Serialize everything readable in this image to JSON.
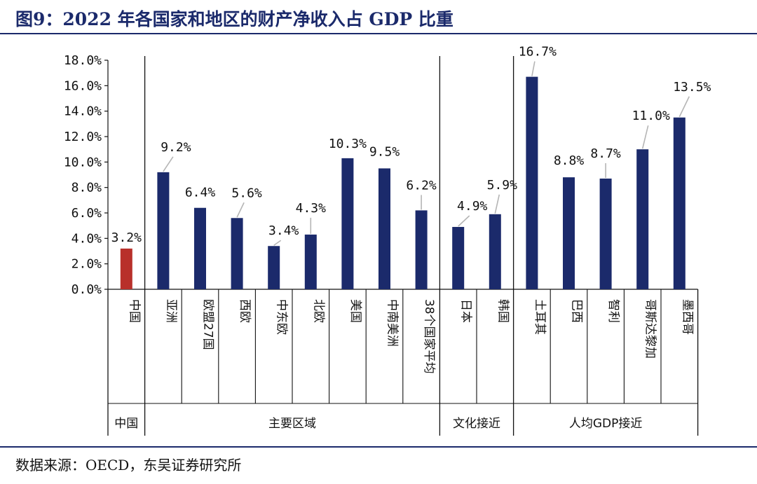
{
  "title": "图9：2022 年各国家和地区的财产净收入占 GDP 比重",
  "source": "数据来源：OECD，东吴证券研究所",
  "colors": {
    "highlight": "#b8302a",
    "bar": "#1b2a6b",
    "rule": "#1b2a6b"
  },
  "chart_data": {
    "type": "bar",
    "ylim": [
      0,
      18
    ],
    "yticks": [
      "0.0%",
      "2.0%",
      "4.0%",
      "6.0%",
      "8.0%",
      "10.0%",
      "12.0%",
      "14.0%",
      "16.0%",
      "18.0%"
    ],
    "grid": false,
    "categories": [
      "中国",
      "亚洲",
      "欧盟27国",
      "西欧",
      "中东欧",
      "北欧",
      "美国",
      "中南美洲",
      "38个国家平均",
      "日本",
      "韩国",
      "土耳其",
      "巴西",
      "智利",
      "哥斯达黎加",
      "墨西哥"
    ],
    "values": [
      3.2,
      9.2,
      6.4,
      5.6,
      3.4,
      4.3,
      10.3,
      9.5,
      6.2,
      4.9,
      5.9,
      16.7,
      8.8,
      8.7,
      11.0,
      13.5
    ],
    "labels": [
      "3.2%",
      "9.2%",
      "6.4%",
      "5.6%",
      "3.4%",
      "4.3%",
      "10.3%",
      "9.5%",
      "6.2%",
      "4.9%",
      "5.9%",
      "16.7%",
      "8.8%",
      "8.7%",
      "11.0%",
      "13.5%"
    ],
    "groups": [
      {
        "name": "中国",
        "start": 0,
        "end": 0
      },
      {
        "name": "主要区域",
        "start": 1,
        "end": 8
      },
      {
        "name": "文化接近",
        "start": 9,
        "end": 10
      },
      {
        "name": "人均GDP接近",
        "start": 11,
        "end": 15
      }
    ]
  }
}
